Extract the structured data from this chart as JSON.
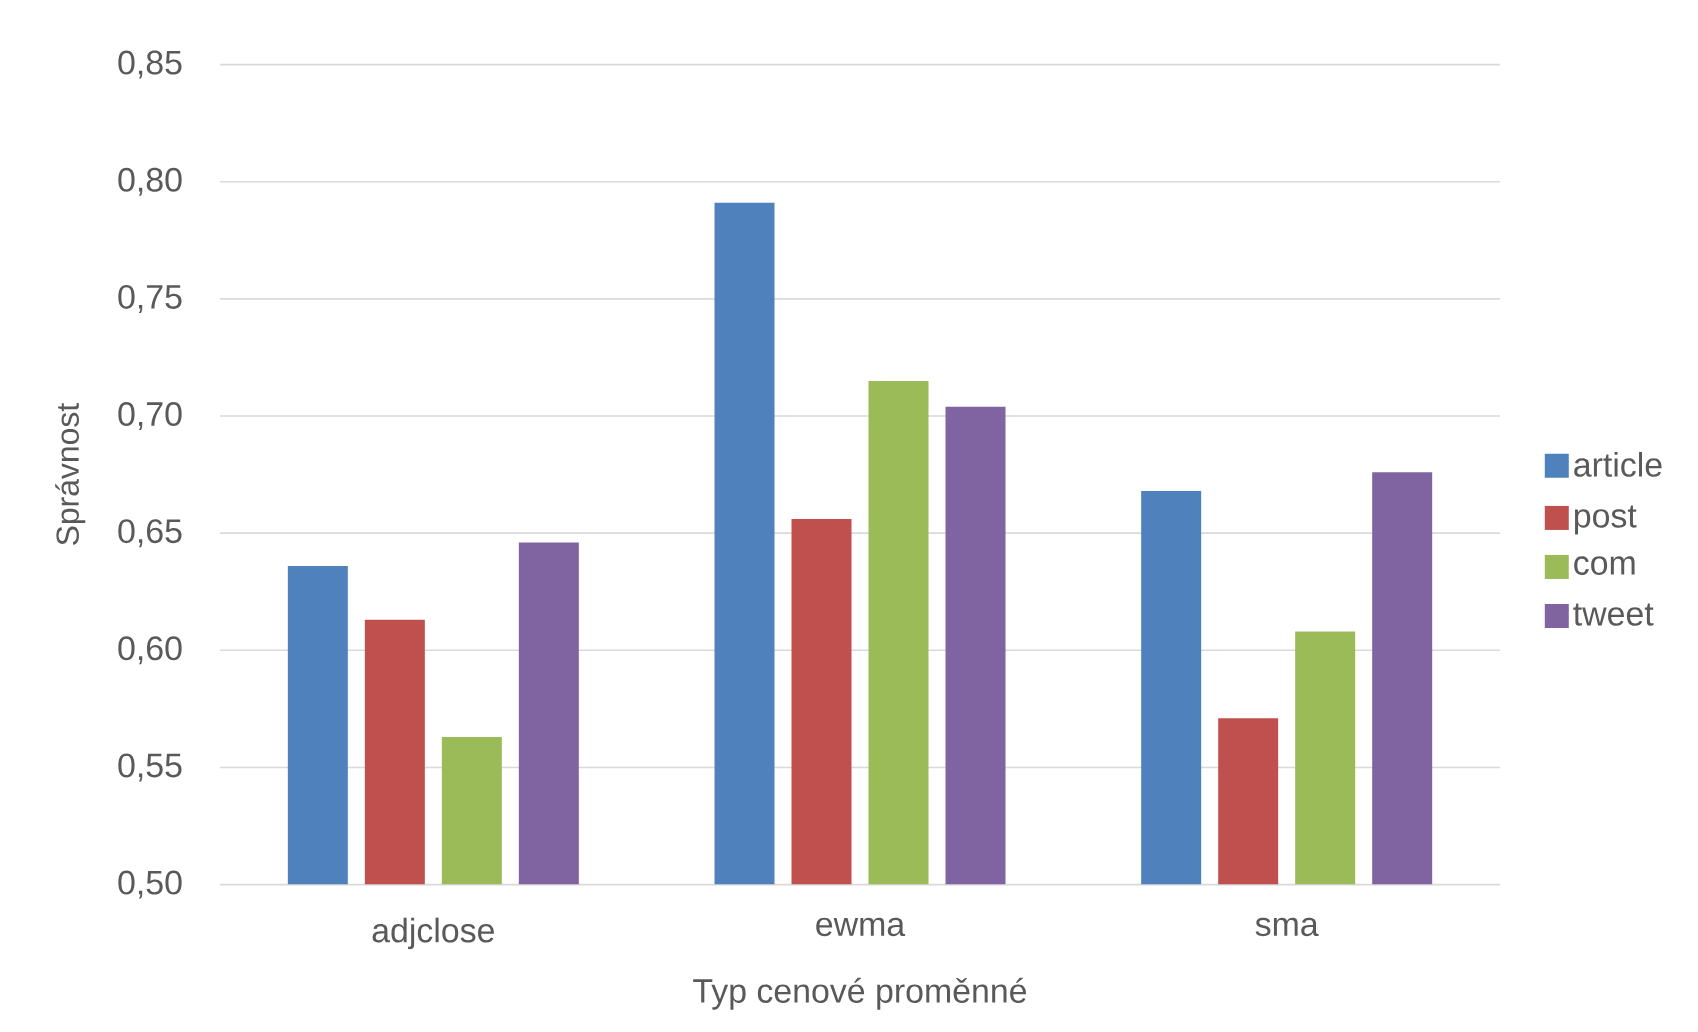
{
  "chart_data": {
    "type": "bar",
    "xlabel": "Typ cenové proměnné",
    "ylabel": "Správnost",
    "categories": [
      "adjclose",
      "ewma",
      "sma"
    ],
    "series": [
      {
        "name": "article",
        "color": "#4f81bd",
        "values": [
          0.636,
          0.791,
          0.668
        ]
      },
      {
        "name": "post",
        "color": "#c0504d",
        "values": [
          0.613,
          0.656,
          0.571
        ]
      },
      {
        "name": "com",
        "color": "#9bbb59",
        "values": [
          0.563,
          0.715,
          0.608
        ]
      },
      {
        "name": "tweet",
        "color": "#8064a2",
        "values": [
          0.646,
          0.704,
          0.676
        ]
      }
    ],
    "ylim": [
      0.5,
      0.85
    ],
    "yticks": [
      {
        "value": 0.5,
        "label": "0,50"
      },
      {
        "value": 0.55,
        "label": "0,55"
      },
      {
        "value": 0.6,
        "label": "0,60"
      },
      {
        "value": 0.65,
        "label": "0,65"
      },
      {
        "value": 0.7,
        "label": "0,70"
      },
      {
        "value": 0.75,
        "label": "0,75"
      },
      {
        "value": 0.8,
        "label": "0,80"
      },
      {
        "value": 0.85,
        "label": "0,85"
      }
    ],
    "grid": "y",
    "legend": "right"
  }
}
